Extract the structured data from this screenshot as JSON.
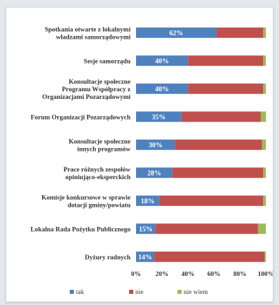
{
  "chart_data": {
    "type": "bar",
    "orientation": "horizontal",
    "stacked": true,
    "percent": true,
    "categories": [
      "Spotkania otwarte z lokalnymi władzami samorządowymi",
      "Sesje samorządu",
      "Konsultacje społeczne Programu Współpracy z Organizacjami Pozarządowymi",
      "Forum Organizacji Pozarządowych",
      "Konsultacje społeczne innych programów",
      "Prace różnych zespołów opiniująco-eksperckich",
      "Komisje konkursowe w sprawie dotacji gminy/powiatu",
      "Lokalna Rada Pożytku Publicznego",
      "Dyżury radnych"
    ],
    "series": [
      {
        "name": "tak",
        "color": "#4f81bd",
        "values": [
          62,
          40,
          40,
          35,
          30,
          28,
          18,
          15,
          14
        ]
      },
      {
        "name": "nie",
        "color": "#c0504d",
        "values": [
          36,
          58,
          58,
          61,
          67,
          70,
          80,
          79,
          85
        ]
      },
      {
        "name": "nie wiem",
        "color": "#9bbb59",
        "values": [
          2,
          2,
          2,
          4,
          3,
          2,
          2,
          6,
          1
        ]
      }
    ],
    "data_labels": [
      "62%",
      "40%",
      "40%",
      "35%",
      "30%",
      "28%",
      "18%",
      "15%",
      "14%"
    ],
    "x_ticks": [
      "0%",
      "20%",
      "40%",
      "60%",
      "80%",
      "100%"
    ],
    "xlim": [
      0,
      100
    ],
    "grid": false,
    "legend": "bottom"
  }
}
